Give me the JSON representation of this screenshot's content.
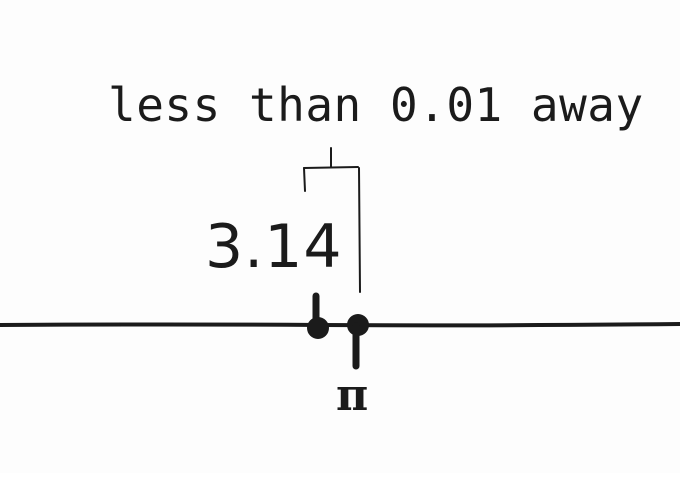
{
  "annotation": {
    "text": "less than 0.01 away"
  },
  "points": {
    "approx_label": "3.14",
    "pi_label": "π"
  },
  "colors": {
    "ink": "#1b1b1b",
    "background": "#fdfdfd"
  }
}
